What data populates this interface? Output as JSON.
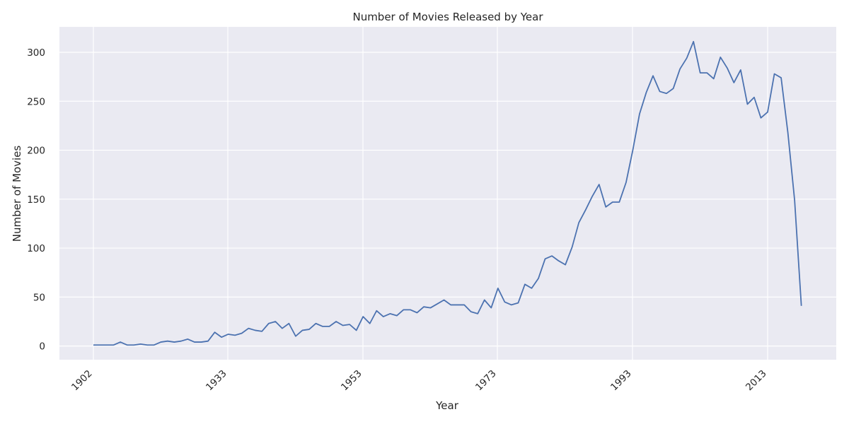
{
  "chart_data": {
    "type": "line",
    "title": "Number of Movies Released by Year",
    "xlabel": "Year",
    "ylabel": "Number of Movies",
    "x_tick_labels": [
      "1902",
      "1933",
      "1953",
      "1973",
      "1993",
      "2013"
    ],
    "y_tick_labels": [
      "0",
      "50",
      "100",
      "150",
      "200",
      "250",
      "300"
    ],
    "y_ticks": [
      0,
      50,
      100,
      150,
      200,
      250,
      300
    ],
    "ylim": [
      -14,
      326
    ],
    "grid": true,
    "series": [
      {
        "color": "#4c72b0",
        "values": [
          1,
          1,
          1,
          1,
          4,
          1,
          1,
          2,
          1,
          1,
          4,
          5,
          4,
          5,
          7,
          4,
          4,
          5,
          14,
          9,
          12,
          11,
          13,
          18,
          16,
          15,
          23,
          25,
          18,
          23,
          10,
          16,
          17,
          23,
          20,
          20,
          25,
          21,
          22,
          16,
          30,
          23,
          36,
          30,
          33,
          31,
          37,
          37,
          34,
          40,
          39,
          43,
          47,
          42,
          42,
          42,
          35,
          33,
          47,
          39,
          59,
          45,
          42,
          44,
          63,
          59,
          69,
          89,
          92,
          87,
          83,
          101,
          126,
          139,
          153,
          165,
          142,
          147,
          147,
          167,
          200,
          237,
          259,
          276,
          260,
          258,
          263,
          283,
          294,
          311,
          279,
          279,
          273,
          295,
          284,
          269,
          282,
          247,
          254,
          233,
          239,
          278,
          274,
          218,
          149,
          41
        ]
      }
    ]
  },
  "colors": {
    "plot_background": "#eaeaf2",
    "grid": "#ffffff",
    "line": "#4c72b0"
  }
}
